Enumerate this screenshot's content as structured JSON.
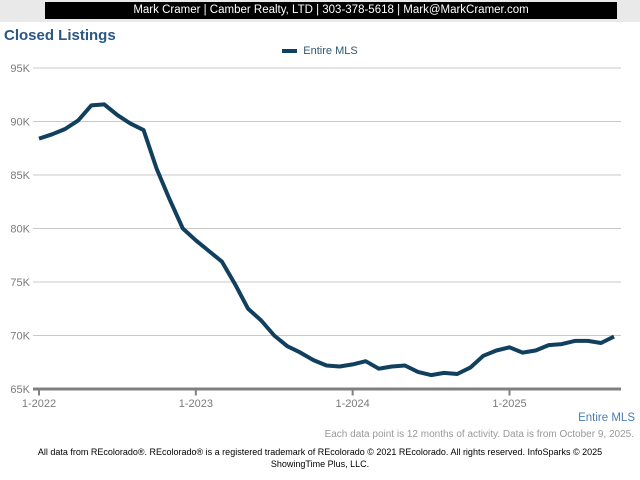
{
  "header": {
    "agent_banner": "Mark Cramer | Camber Realty, LTD | 303-378-5618 | Mark@MarkCramer.com"
  },
  "title": "Closed Listings",
  "legend": {
    "position": "top-center",
    "items": [
      {
        "label": "Entire MLS",
        "color": "#11405e"
      }
    ]
  },
  "chart_data": {
    "type": "line",
    "title": "Closed Listings",
    "x_interval": "monthly",
    "x_range": {
      "start": "1-2022",
      "end": "9-2025"
    },
    "x_ticks": [
      {
        "label": "1-2022",
        "index": 0
      },
      {
        "label": "1-2023",
        "index": 12
      },
      {
        "label": "1-2024",
        "index": 24
      },
      {
        "label": "1-2025",
        "index": 36
      }
    ],
    "y_ticks": [
      {
        "label": "95K",
        "value": 95000
      },
      {
        "label": "90K",
        "value": 90000
      },
      {
        "label": "85K",
        "value": 85000
      },
      {
        "label": "80K",
        "value": 80000
      },
      {
        "label": "75K",
        "value": 75000
      },
      {
        "label": "70K",
        "value": 70000
      },
      {
        "label": "65K",
        "value": 65000
      }
    ],
    "ylim": [
      65000,
      95000
    ],
    "grid": "horizontal",
    "legend_position": "top-center",
    "series": [
      {
        "name": "Entire MLS",
        "color": "#11405e",
        "values": [
          88400,
          88800,
          89300,
          90100,
          91500,
          91600,
          90600,
          89800,
          89200,
          85600,
          82700,
          80000,
          78900,
          77900,
          76900,
          74800,
          72500,
          71400,
          70000,
          69000,
          68400,
          67700,
          67200,
          67100,
          67300,
          67600,
          66900,
          67100,
          67200,
          66600,
          66300,
          66500,
          66400,
          67000,
          68100,
          68600,
          68900,
          68400,
          68600,
          69100,
          69200,
          69500,
          69500,
          69300,
          69900
        ]
      }
    ]
  },
  "footer": {
    "entire_mls_link": "Entire MLS",
    "footnote": "Each data point is 12 months of activity. Data is from October 9, 2025.",
    "disclaimer_lines": [
      "All data from REcolorado®. REcolorado® is a registered trademark of REcolorado © 2021 REcolorado. All rights reserved. InfoSparks © 2025",
      "ShowingTime Plus, LLC."
    ]
  },
  "colors": {
    "series_navy": "#11405e",
    "title_blue": "#2a5783",
    "link_blue": "#4a7db4",
    "grid_gray": "#c9c9c9",
    "axis_gray": "#808080",
    "tick_text_gray": "#7a7a7a",
    "footnote_gray": "#999999",
    "header_bg": "#000000",
    "header_text": "#ffffff",
    "topstrip_bg": "#e9e9e9"
  }
}
